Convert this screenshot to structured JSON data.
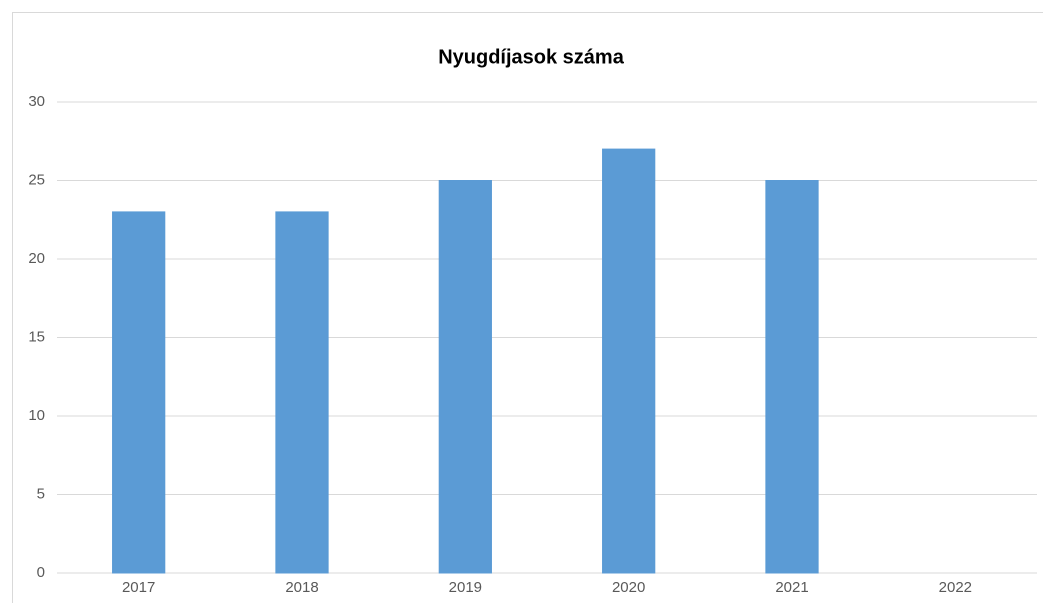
{
  "chart_data": {
    "type": "bar",
    "title": "Nyugdíjasok száma",
    "categories": [
      "2017",
      "2018",
      "2019",
      "2020",
      "2021",
      "2022"
    ],
    "values": [
      23,
      23,
      25,
      27,
      25,
      0
    ],
    "color": "#5b9bd5",
    "ylim": [
      0,
      30
    ],
    "yticks": [
      0,
      5,
      10,
      15,
      20,
      25,
      30
    ],
    "grid": true
  }
}
